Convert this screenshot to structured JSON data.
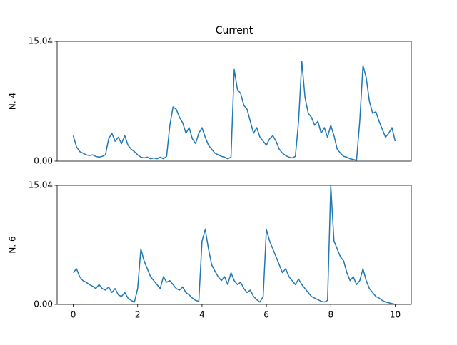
{
  "chart_data": [
    {
      "type": "line",
      "title": "Current",
      "ylabel": "N. 4",
      "x": [
        0,
        0.1,
        0.2,
        0.3,
        0.4,
        0.5,
        0.6,
        0.7,
        0.8,
        0.9,
        1,
        1.1,
        1.2,
        1.3,
        1.4,
        1.5,
        1.6,
        1.7,
        1.8,
        1.9,
        2,
        2.1,
        2.2,
        2.3,
        2.4,
        2.5,
        2.6,
        2.7,
        2.8,
        2.9,
        3,
        3.1,
        3.2,
        3.3,
        3.4,
        3.5,
        3.6,
        3.7,
        3.8,
        3.9,
        4,
        4.1,
        4.2,
        4.3,
        4.4,
        4.5,
        4.6,
        4.7,
        4.8,
        4.9,
        5,
        5.1,
        5.2,
        5.3,
        5.4,
        5.5,
        5.6,
        5.7,
        5.8,
        5.9,
        6,
        6.1,
        6.2,
        6.3,
        6.4,
        6.5,
        6.6,
        6.7,
        6.8,
        6.9,
        7,
        7.1,
        7.2,
        7.3,
        7.4,
        7.5,
        7.6,
        7.7,
        7.8,
        7.9,
        8,
        8.1,
        8.2,
        8.3,
        8.4,
        8.5,
        8.6,
        8.7,
        8.8,
        8.9,
        9,
        9.1,
        9.2,
        9.3,
        9.4,
        9.5,
        9.6,
        9.7,
        9.8,
        9.9,
        10
      ],
      "values": [
        3.2,
        1.8,
        1.2,
        1.0,
        0.8,
        0.7,
        0.8,
        0.6,
        0.5,
        0.6,
        0.8,
        2.8,
        3.5,
        2.5,
        3.0,
        2.2,
        3.2,
        2.0,
        1.5,
        1.2,
        0.8,
        0.5,
        0.4,
        0.5,
        0.3,
        0.4,
        0.3,
        0.5,
        0.3,
        0.6,
        4.5,
        6.8,
        6.5,
        5.5,
        4.8,
        3.5,
        4.2,
        2.8,
        2.2,
        3.5,
        4.2,
        3.0,
        2.0,
        1.5,
        1.0,
        0.8,
        0.6,
        0.5,
        0.3,
        0.5,
        11.5,
        9.0,
        8.5,
        7.0,
        6.5,
        5.0,
        3.5,
        4.2,
        3.0,
        2.5,
        2.0,
        2.8,
        3.2,
        2.5,
        1.5,
        1.0,
        0.7,
        0.5,
        0.4,
        0.6,
        5.0,
        12.5,
        8.0,
        6.0,
        5.5,
        4.5,
        5.0,
        3.5,
        4.2,
        3.0,
        4.5,
        3.2,
        1.5,
        1.0,
        0.6,
        0.5,
        0.3,
        0.2,
        0.1,
        5.0,
        12.0,
        10.5,
        7.5,
        6.0,
        6.2,
        5.0,
        4.0,
        3.0,
        3.5,
        4.2,
        2.5
      ],
      "color": "#1f77b4",
      "xlim": [
        -0.5,
        10.5
      ],
      "ylim": [
        0,
        15.04
      ],
      "yticks": [
        {
          "value": 0,
          "label": "0.00"
        },
        {
          "value": 15.04,
          "label": "15.04"
        }
      ]
    },
    {
      "type": "line",
      "ylabel": "N. 6",
      "x": [
        0,
        0.1,
        0.2,
        0.3,
        0.4,
        0.5,
        0.6,
        0.7,
        0.8,
        0.9,
        1,
        1.1,
        1.2,
        1.3,
        1.4,
        1.5,
        1.6,
        1.7,
        1.8,
        1.9,
        2,
        2.1,
        2.2,
        2.3,
        2.4,
        2.5,
        2.6,
        2.7,
        2.8,
        2.9,
        3,
        3.1,
        3.2,
        3.3,
        3.4,
        3.5,
        3.6,
        3.7,
        3.8,
        3.9,
        4,
        4.1,
        4.2,
        4.3,
        4.4,
        4.5,
        4.6,
        4.7,
        4.8,
        4.9,
        5,
        5.1,
        5.2,
        5.3,
        5.4,
        5.5,
        5.6,
        5.7,
        5.8,
        5.9,
        6,
        6.1,
        6.2,
        6.3,
        6.4,
        6.5,
        6.6,
        6.7,
        6.8,
        6.9,
        7,
        7.1,
        7.2,
        7.3,
        7.4,
        7.5,
        7.6,
        7.7,
        7.8,
        7.9,
        8,
        8.1,
        8.2,
        8.3,
        8.4,
        8.5,
        8.6,
        8.7,
        8.8,
        8.9,
        9,
        9.1,
        9.2,
        9.3,
        9.4,
        9.5,
        9.6,
        9.7,
        9.8,
        9.9,
        10
      ],
      "values": [
        4.0,
        4.5,
        3.5,
        3.0,
        2.8,
        2.5,
        2.3,
        2.0,
        2.5,
        2.0,
        1.8,
        2.2,
        1.5,
        2.0,
        1.2,
        1.0,
        1.5,
        0.8,
        0.5,
        0.3,
        2.0,
        7.0,
        5.5,
        4.5,
        3.5,
        3.0,
        2.5,
        2.0,
        3.5,
        2.8,
        3.0,
        2.5,
        2.0,
        1.8,
        2.2,
        1.5,
        1.2,
        0.8,
        0.5,
        0.4,
        8.0,
        9.5,
        7.0,
        5.0,
        4.2,
        3.5,
        3.0,
        3.5,
        2.5,
        4.0,
        3.0,
        2.5,
        2.8,
        2.0,
        1.5,
        1.8,
        1.0,
        0.6,
        0.3,
        1.0,
        9.5,
        8.0,
        7.0,
        6.0,
        5.0,
        4.0,
        4.5,
        3.5,
        3.0,
        2.5,
        3.2,
        2.5,
        2.0,
        1.5,
        1.0,
        0.8,
        0.6,
        0.4,
        0.3,
        0.5,
        15.0,
        8.0,
        7.0,
        6.0,
        5.5,
        4.0,
        3.0,
        3.5,
        2.5,
        3.0,
        4.5,
        3.0,
        2.0,
        1.5,
        1.0,
        0.8,
        0.5,
        0.3,
        0.2,
        0.1,
        0.0
      ],
      "color": "#1f77b4",
      "xlim": [
        -0.5,
        10.5
      ],
      "ylim": [
        0,
        15.04
      ],
      "yticks": [
        {
          "value": 0,
          "label": "0.00"
        },
        {
          "value": 15.04,
          "label": "15.04"
        }
      ],
      "xticks": [
        0,
        2,
        4,
        6,
        8,
        10
      ]
    }
  ]
}
